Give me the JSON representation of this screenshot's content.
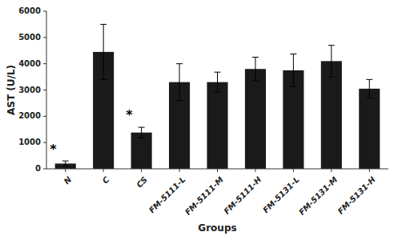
{
  "chart_data": {
    "type": "bar",
    "categories": [
      "N",
      "C",
      "CS",
      "FM-5111-L",
      "FM-5111-M",
      "FM-5111-H",
      "FM-5131-L",
      "FM-5131-M",
      "FM-5131-H"
    ],
    "values": [
      200,
      4450,
      1380,
      3300,
      3300,
      3800,
      3750,
      4100,
      3050
    ],
    "errors": [
      100,
      1050,
      200,
      700,
      380,
      450,
      620,
      600,
      350
    ],
    "color": "#1a1a1a",
    "ylabel": "AST (U/L)",
    "xlabel": "Groups",
    "ylim": [
      0,
      6000
    ],
    "yticks": [
      0,
      1000,
      2000,
      3000,
      4000,
      5000,
      6000
    ],
    "grid": false,
    "annotations": [
      {
        "text": "*",
        "x": "N",
        "y": 750
      },
      {
        "text": "*",
        "x": "CS",
        "y": 2050
      }
    ]
  }
}
